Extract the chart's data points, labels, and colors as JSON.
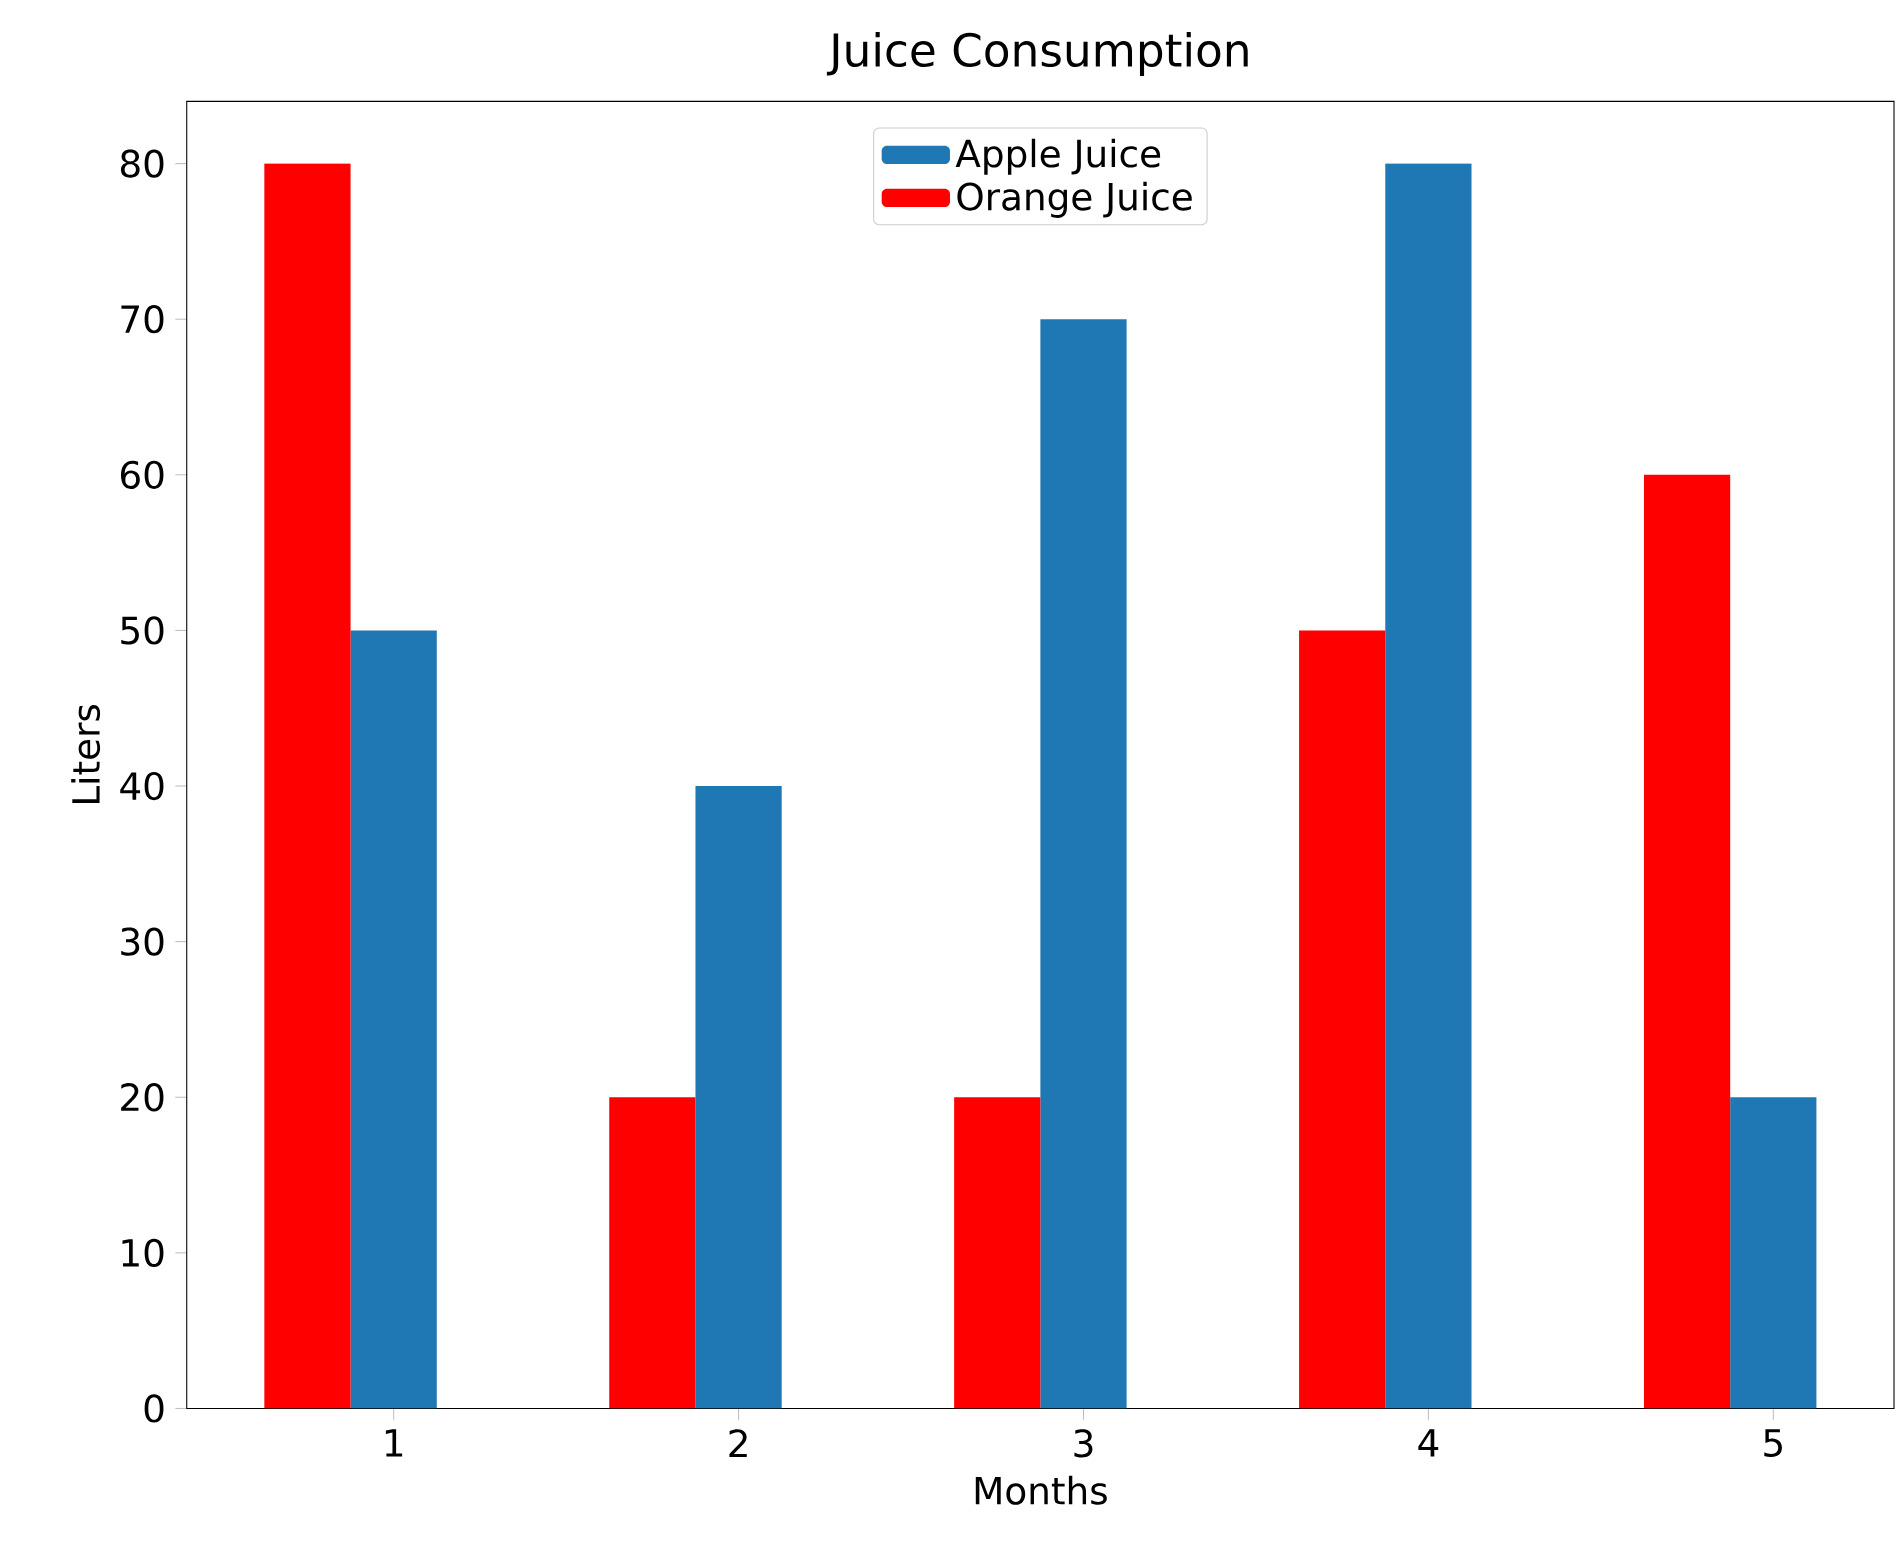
{
  "chart_data": {
    "type": "bar",
    "title": "Juice Consumption",
    "xlabel": "Months",
    "ylabel": "Liters",
    "x": [
      1,
      2,
      3,
      4,
      5
    ],
    "series": [
      {
        "name": "Apple Juice",
        "color": "#1f77b4",
        "values": [
          50,
          40,
          70,
          80,
          20
        ]
      },
      {
        "name": "Orange Juice",
        "color": "#ff0000",
        "values": [
          80,
          20,
          20,
          50,
          60
        ]
      }
    ],
    "xlim": [
      0.4,
      5.35
    ],
    "ylim": [
      0,
      84
    ],
    "xticks": [
      1,
      2,
      3,
      4,
      5
    ],
    "yticks": [
      0,
      10,
      20,
      30,
      40,
      50,
      60,
      70,
      80
    ],
    "legend": "top",
    "grid": false
  }
}
